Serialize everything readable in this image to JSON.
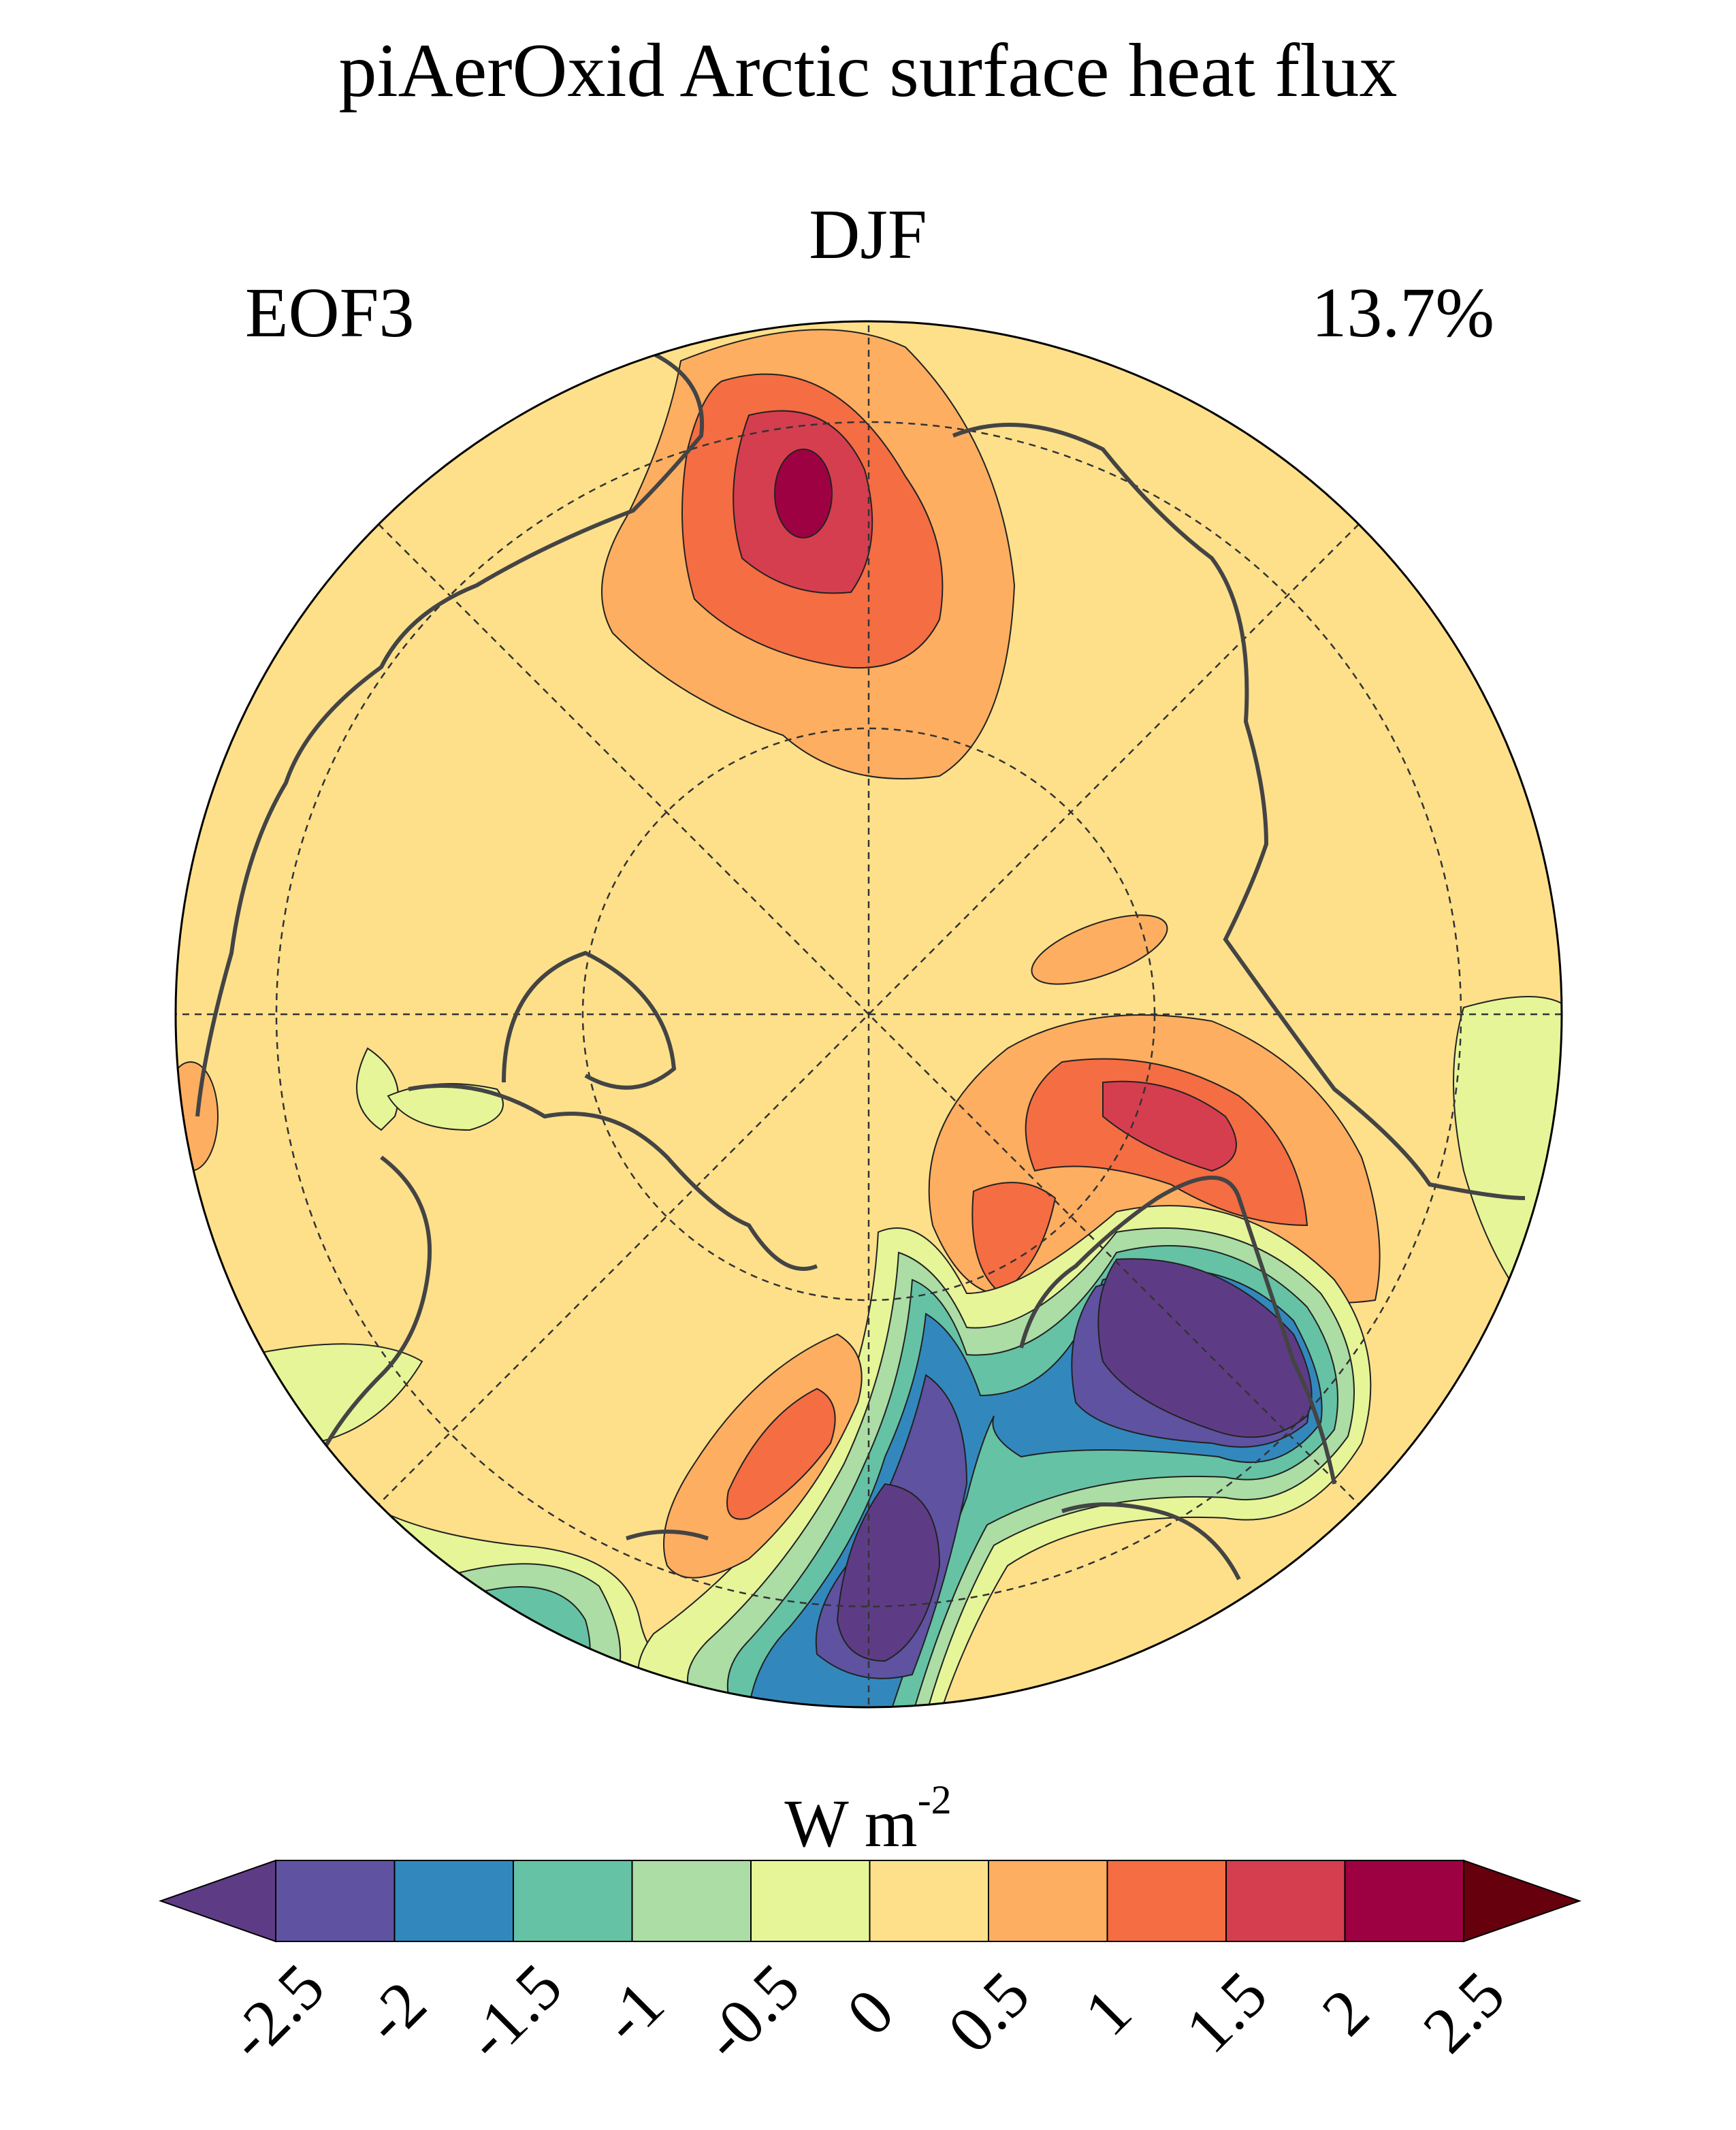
{
  "title": "piAerOxid Arctic surface heat flux",
  "season": "DJF",
  "mode_label": "EOF3",
  "variance_explained": "13.7%",
  "colorbar": {
    "units_base": "W m",
    "units_exp": "-2",
    "ticks": [
      "-2.5",
      "-2",
      "-1.5",
      "-1",
      "-0.5",
      "0",
      "0.5",
      "1",
      "1.5",
      "2",
      "2.5"
    ],
    "colors": [
      "#5e3c85",
      "#5e52a1",
      "#3288bd",
      "#66c2a5",
      "#abdda4",
      "#e6f598",
      "#fee08b",
      "#fdae61",
      "#f46d43",
      "#d53e4f",
      "#9e0142",
      "#67000d"
    ],
    "extend": "both"
  },
  "chart_data": {
    "type": "contour-map",
    "projection": "north polar stereographic",
    "title": "piAerOxid Arctic surface heat flux",
    "subtitle": "DJF",
    "left_label": "EOF3",
    "right_label": "13.7%",
    "levels": [
      -2.5,
      -2,
      -1.5,
      -1,
      -0.5,
      0,
      0.5,
      1,
      1.5,
      2,
      2.5
    ],
    "units": "W m-2",
    "features": [
      {
        "region": "top (Pacific/Bering side)",
        "sign": "positive",
        "peak_approx": 2.2
      },
      {
        "region": "right-center (Barents/Kara)",
        "sign": "positive",
        "peak_approx": 1.7
      },
      {
        "region": "bottom-right (Nordic Seas/Scandinavia)",
        "sign": "negative",
        "peak_approx": -2.3
      },
      {
        "region": "bottom (North Atlantic south of Greenland)",
        "sign": "negative",
        "peak_approx": -2.2
      },
      {
        "region": "bottom-left (Labrador Sea)",
        "sign": "positive",
        "peak_approx": 1.2
      }
    ]
  }
}
